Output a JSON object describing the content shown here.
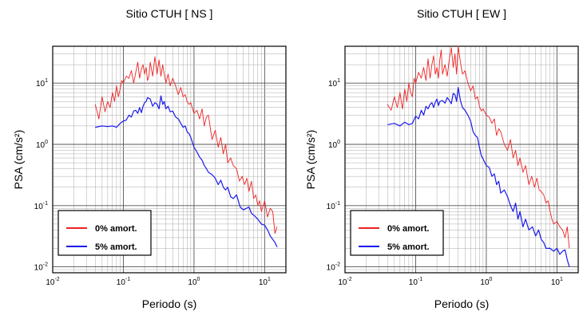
{
  "chart_data": [
    {
      "type": "line",
      "title": "Sitio CTUH [ NS ]",
      "xlabel": "Periodo (s)",
      "ylabel": "PSA (cm/s²)",
      "xscale": "log",
      "yscale": "log",
      "xlim": [
        0.01,
        20
      ],
      "ylim": [
        0.008,
        40
      ],
      "grid": true,
      "legend_position": "bottom-left",
      "series": [
        {
          "name": "0% amort.",
          "color": "#ee2222",
          "x": [
            0.04,
            0.045,
            0.05,
            0.055,
            0.06,
            0.065,
            0.07,
            0.075,
            0.08,
            0.085,
            0.09,
            0.095,
            0.1,
            0.11,
            0.12,
            0.13,
            0.14,
            0.15,
            0.16,
            0.17,
            0.18,
            0.19,
            0.2,
            0.21,
            0.22,
            0.23,
            0.24,
            0.26,
            0.28,
            0.3,
            0.32,
            0.34,
            0.36,
            0.38,
            0.4,
            0.43,
            0.46,
            0.5,
            0.55,
            0.6,
            0.65,
            0.7,
            0.75,
            0.8,
            0.85,
            0.9,
            1.0,
            1.1,
            1.2,
            1.3,
            1.4,
            1.5,
            1.6,
            1.8,
            2.0,
            2.2,
            2.4,
            2.6,
            2.8,
            3.0,
            3.3,
            3.6,
            4.0,
            4.4,
            4.8,
            5.2,
            5.6,
            6.0,
            6.5,
            7.0,
            7.5,
            8.0,
            8.5,
            9.0,
            10.0,
            11.0,
            12.0,
            13.0,
            14.0,
            15.0
          ],
          "y": [
            4.5,
            2.6,
            6,
            3.4,
            5,
            4,
            7,
            5,
            9,
            6,
            8,
            11,
            10,
            13,
            12,
            16,
            10,
            15,
            22,
            12,
            17,
            20,
            14,
            18,
            11,
            13,
            22,
            13,
            27,
            14,
            24,
            13,
            20,
            14,
            10,
            14,
            9,
            12,
            9,
            6.5,
            8.5,
            6,
            6.5,
            5,
            4.5,
            4.8,
            3.2,
            3.6,
            2.6,
            3.8,
            2,
            2.8,
            3,
            1.2,
            1.7,
            0.9,
            1.3,
            0.7,
            1,
            0.5,
            0.6,
            0.45,
            0.4,
            0.25,
            0.3,
            0.22,
            0.28,
            0.17,
            0.25,
            0.13,
            0.15,
            0.1,
            0.12,
            0.08,
            0.12,
            0.065,
            0.09,
            0.08,
            0.035,
            0.045
          ]
        },
        {
          "name": "5% amort.",
          "color": "#1a1aee",
          "x": [
            0.04,
            0.05,
            0.06,
            0.07,
            0.08,
            0.09,
            0.1,
            0.11,
            0.12,
            0.13,
            0.14,
            0.15,
            0.16,
            0.17,
            0.18,
            0.19,
            0.2,
            0.21,
            0.22,
            0.24,
            0.26,
            0.28,
            0.3,
            0.32,
            0.34,
            0.36,
            0.38,
            0.4,
            0.43,
            0.46,
            0.5,
            0.55,
            0.6,
            0.65,
            0.7,
            0.75,
            0.8,
            0.85,
            0.9,
            1.0,
            1.1,
            1.2,
            1.3,
            1.4,
            1.5,
            1.6,
            1.8,
            2.0,
            2.2,
            2.4,
            2.6,
            2.8,
            3.0,
            3.3,
            3.6,
            4.0,
            4.5,
            5.0,
            5.5,
            6.0,
            6.5,
            7.0,
            8.0,
            9.0,
            10.0,
            11.0,
            12.0,
            13.0,
            14.0,
            15.0
          ],
          "y": [
            1.9,
            2.0,
            1.95,
            2.0,
            1.9,
            2.2,
            2.4,
            2.5,
            3.0,
            2.8,
            3.5,
            3.6,
            3.2,
            4.0,
            3.3,
            4.2,
            4.8,
            5.0,
            5.8,
            5.5,
            4.2,
            4.8,
            4.5,
            3.8,
            6.2,
            4.5,
            5.0,
            3.8,
            4.2,
            3.4,
            3.5,
            2.8,
            2.6,
            2.2,
            1.9,
            2.0,
            1.6,
            1.5,
            1.3,
            0.9,
            0.75,
            0.62,
            0.55,
            0.45,
            0.4,
            0.35,
            0.32,
            0.28,
            0.22,
            0.26,
            0.2,
            0.18,
            0.2,
            0.14,
            0.13,
            0.15,
            0.095,
            0.085,
            0.09,
            0.095,
            0.075,
            0.07,
            0.06,
            0.05,
            0.048,
            0.04,
            0.032,
            0.028,
            0.025,
            0.021
          ]
        }
      ]
    },
    {
      "type": "line",
      "title": "Sitio CTUH [ EW ]",
      "xlabel": "Periodo (s)",
      "ylabel": "PSA (cm/s²)",
      "xscale": "log",
      "yscale": "log",
      "xlim": [
        0.01,
        20
      ],
      "ylim": [
        0.008,
        40
      ],
      "grid": true,
      "legend_position": "bottom-left",
      "series": [
        {
          "name": "0% amort.",
          "color": "#ee2222",
          "x": [
            0.04,
            0.045,
            0.05,
            0.055,
            0.06,
            0.065,
            0.07,
            0.075,
            0.08,
            0.085,
            0.09,
            0.095,
            0.1,
            0.11,
            0.12,
            0.13,
            0.14,
            0.15,
            0.16,
            0.17,
            0.18,
            0.19,
            0.2,
            0.21,
            0.22,
            0.23,
            0.24,
            0.26,
            0.28,
            0.3,
            0.32,
            0.34,
            0.36,
            0.38,
            0.4,
            0.43,
            0.46,
            0.5,
            0.55,
            0.6,
            0.65,
            0.7,
            0.75,
            0.8,
            0.85,
            0.9,
            1.0,
            1.1,
            1.2,
            1.3,
            1.4,
            1.5,
            1.6,
            1.8,
            2.0,
            2.2,
            2.4,
            2.6,
            2.8,
            3.0,
            3.3,
            3.6,
            4.0,
            4.4,
            4.8,
            5.2,
            5.6,
            6.0,
            6.5,
            7.0,
            7.5,
            8.0,
            8.5,
            9.0,
            10.0,
            11.0,
            12.0,
            13.0,
            14.0,
            15.0
          ],
          "y": [
            4.5,
            3.6,
            6,
            4,
            7,
            3.8,
            8,
            5,
            10,
            7,
            6,
            12,
            10,
            15,
            12,
            18,
            11,
            25,
            12,
            20,
            28,
            14,
            18,
            12,
            24,
            35,
            14,
            20,
            13,
            25,
            38,
            18,
            30,
            14,
            40,
            22,
            14,
            16,
            10,
            7.5,
            9,
            5.5,
            6,
            4.2,
            3.5,
            3.8,
            3.0,
            2.8,
            2.2,
            2.6,
            1.4,
            1.8,
            1.6,
            1.0,
            0.8,
            1.2,
            0.6,
            0.8,
            0.45,
            0.6,
            0.35,
            0.45,
            0.22,
            0.3,
            0.2,
            0.28,
            0.18,
            0.17,
            0.15,
            0.11,
            0.12,
            0.08,
            0.06,
            0.05,
            0.055,
            0.045,
            0.04,
            0.03,
            0.045,
            0.02
          ]
        },
        {
          "name": "5% amort.",
          "color": "#1a1aee",
          "x": [
            0.04,
            0.05,
            0.06,
            0.07,
            0.08,
            0.09,
            0.1,
            0.11,
            0.12,
            0.13,
            0.14,
            0.15,
            0.16,
            0.17,
            0.18,
            0.19,
            0.2,
            0.21,
            0.22,
            0.24,
            0.26,
            0.28,
            0.3,
            0.32,
            0.34,
            0.36,
            0.38,
            0.4,
            0.43,
            0.46,
            0.5,
            0.55,
            0.6,
            0.65,
            0.7,
            0.75,
            0.8,
            0.85,
            0.9,
            1.0,
            1.1,
            1.2,
            1.3,
            1.4,
            1.5,
            1.6,
            1.8,
            2.0,
            2.2,
            2.4,
            2.6,
            2.8,
            3.0,
            3.3,
            3.6,
            4.0,
            4.5,
            5.0,
            5.5,
            6.0,
            6.5,
            7.0,
            8.0,
            9.0,
            10.0,
            11.0,
            12.0,
            13.0,
            14.0,
            15.0
          ],
          "y": [
            2.1,
            2.2,
            2.0,
            2.3,
            2.1,
            2.2,
            2.9,
            2.6,
            3.6,
            3.0,
            4.2,
            3.8,
            4.5,
            4.8,
            4.0,
            4.9,
            5.5,
            4.3,
            5.0,
            5.2,
            4.7,
            5.8,
            5.2,
            4.6,
            6.8,
            6.5,
            5.0,
            8.5,
            5.2,
            4.0,
            3.6,
            3.0,
            2.4,
            1.6,
            1.4,
            1.3,
            0.9,
            0.65,
            0.58,
            0.45,
            0.42,
            0.3,
            0.33,
            0.22,
            0.25,
            0.16,
            0.18,
            0.14,
            0.1,
            0.08,
            0.11,
            0.06,
            0.08,
            0.045,
            0.06,
            0.04,
            0.045,
            0.032,
            0.04,
            0.028,
            0.025,
            0.02,
            0.02,
            0.018,
            0.02,
            0.016,
            0.018,
            0.019,
            0.013,
            0.01
          ]
        }
      ]
    }
  ]
}
